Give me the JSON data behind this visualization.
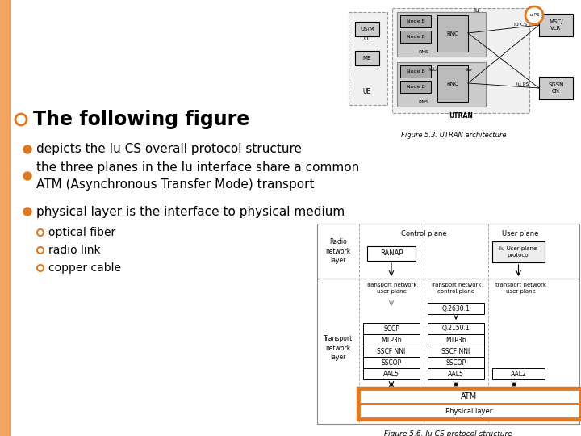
{
  "bg_color": "#ffffff",
  "left_stripe_color": "#f4a460",
  "title_bullet_color": "#e07820",
  "bullet_color": "#e07820",
  "sub_bullet_color": "#e07820",
  "title": "The following figure",
  "bullets": [
    "depicts the Iu CS overall protocol structure",
    "the three planes in the Iu interface share a common\nATM (Asynchronous Transfer Mode) transport",
    "physical layer is the interface to physical medium"
  ],
  "sub_bullets": [
    "optical fiber",
    "radio link",
    "copper cable"
  ],
  "title_fontsize": 17,
  "bullet_fontsize": 11,
  "sub_bullet_fontsize": 10,
  "diagram_caption": "Figure 5.6. Iu CS protocol structure",
  "utran_caption": "Figure 5.3. UTRAN architecture"
}
